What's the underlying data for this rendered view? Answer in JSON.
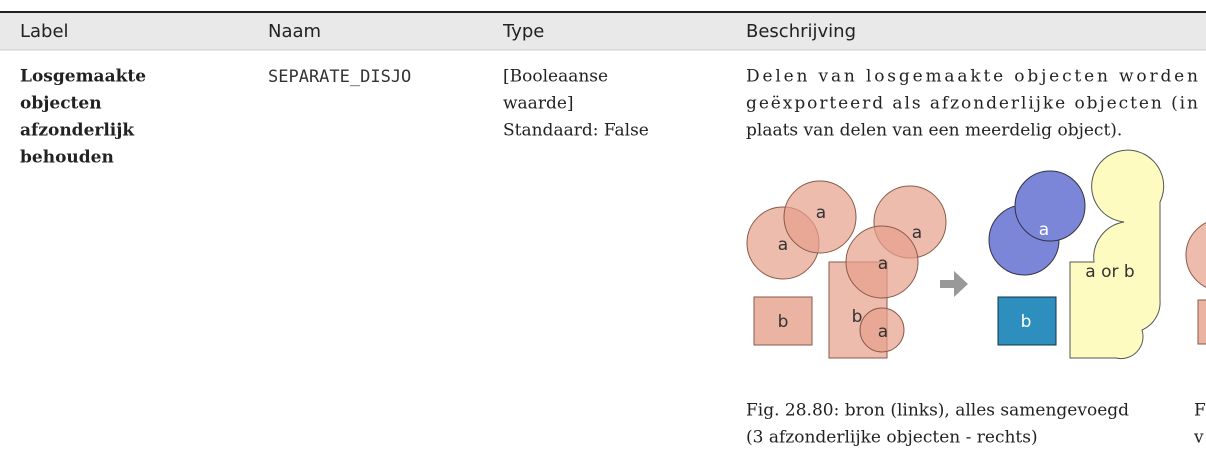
{
  "header": {
    "cells": [
      "Label",
      "Naam",
      "Type",
      "Beschrijving"
    ]
  },
  "row": {
    "label": [
      "Losgemaakte",
      "objecten",
      "afzonderlijk",
      "behouden"
    ],
    "name": "SEPARATE_DISJO",
    "type": [
      "[Booleaanse",
      "waarde]",
      "Standaard: False"
    ],
    "description": [
      "Delen van losgemaakte objecten worden",
      "geëxporteerd als afzonderlijke objecten (in",
      "plaats van delen van een meerdelig object)."
    ],
    "figure": {
      "labels": [
        "a",
        "a",
        "a",
        "a",
        "a",
        "b",
        "b",
        "a",
        "b",
        "a or b"
      ]
    },
    "caption": [
      "Fig. 28.80: bron (links), alles samengevoegd",
      "(3 afzonderlijke objecten - rechts)"
    ],
    "clipped": [
      "F",
      "v"
    ]
  }
}
